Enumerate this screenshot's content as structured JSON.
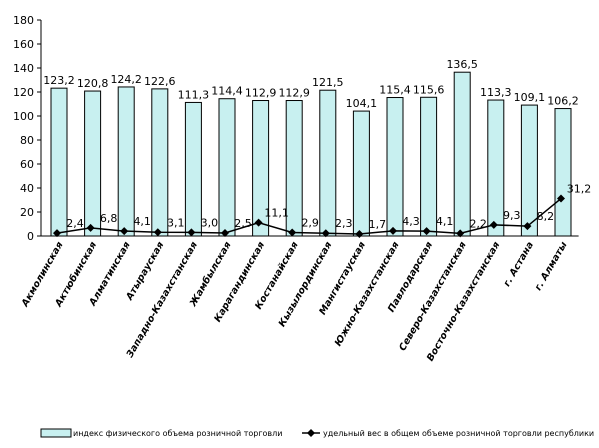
{
  "chart_data": {
    "type": "bar",
    "categories": [
      "Акмолинская",
      "Актюбинская",
      "Алматинская",
      "Атырауская",
      "Западно-Казахстанская",
      "Жамбылская",
      "Карагандинская",
      "Костанайская",
      "Кызылординская",
      "Мангистауская",
      "Южно-Казахстанская",
      "Павлодарская",
      "Северо-Казахстанская",
      "Восточно-Казахстанская",
      "г. Астана",
      "г. Алматы"
    ],
    "series": [
      {
        "name": "индекс физического объема розничной торговли",
        "type": "bar",
        "color": "#c8f0f0",
        "values": [
          123.2,
          120.8,
          124.2,
          122.6,
          111.3,
          114.4,
          112.9,
          112.9,
          121.5,
          104.1,
          115.4,
          115.6,
          136.5,
          113.3,
          109.1,
          106.2
        ],
        "labels": [
          "123,2",
          "120,8",
          "124,2",
          "122,6",
          "111,3",
          "114,4",
          "112,9",
          "112,9",
          "121,5",
          "104,1",
          "115,4",
          "115,6",
          "136,5",
          "113,3",
          "109,1",
          "106,2"
        ]
      },
      {
        "name": "удельный вес в общем объеме розничной торговли республики",
        "type": "line",
        "color": "#000000",
        "values": [
          2.4,
          6.8,
          4.1,
          3.1,
          3.0,
          2.5,
          11.1,
          2.9,
          2.3,
          1.7,
          4.3,
          4.1,
          2.2,
          9.3,
          8.2,
          31.2
        ],
        "labels": [
          "2,4",
          "6,8",
          "4,1",
          "3,1",
          "3,0",
          "2,5",
          "11,1",
          "2,9",
          "2,3",
          "1,7",
          "4,3",
          "4,1",
          "2,2",
          "9,3",
          "8,2",
          "31,2"
        ]
      }
    ],
    "y_ticks": [
      "0",
      "20",
      "40",
      "60",
      "80",
      "100",
      "120",
      "140",
      "160",
      "180"
    ],
    "ylim": [
      0,
      180
    ],
    "legend": {
      "position": "bottom"
    }
  }
}
